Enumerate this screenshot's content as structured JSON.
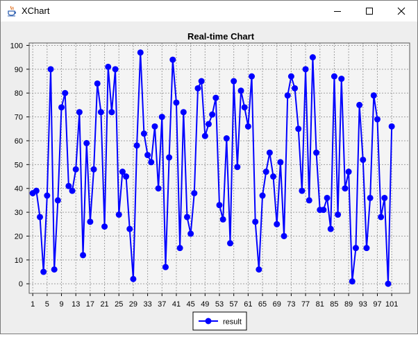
{
  "window": {
    "title": "XChart",
    "icon": "java-cup-icon"
  },
  "controls": {
    "minimize": "minimize-icon",
    "maximize": "maximize-icon",
    "close": "close-icon"
  },
  "colors": {
    "series": "#0000ff",
    "plot_bg": "#f4f4f4",
    "grid": "#a0a0a0",
    "window_bg": "#eeeeee"
  },
  "chart_data": {
    "type": "line",
    "title": "Real-time Chart",
    "xlabel": "",
    "ylabel": "",
    "xlim": [
      0,
      106
    ],
    "ylim": [
      -4,
      101
    ],
    "x_ticks": [
      1,
      5,
      9,
      13,
      17,
      21,
      25,
      29,
      33,
      37,
      41,
      45,
      49,
      53,
      57,
      61,
      65,
      69,
      73,
      77,
      81,
      85,
      89,
      93,
      97,
      101
    ],
    "y_ticks": [
      0,
      10,
      20,
      30,
      40,
      50,
      60,
      70,
      80,
      90,
      100
    ],
    "grid": true,
    "legend": "bottom-center",
    "series": [
      {
        "name": "result",
        "marker": "circle",
        "x": [
          1,
          2,
          3,
          4,
          5,
          6,
          7,
          8,
          9,
          10,
          11,
          12,
          13,
          14,
          15,
          16,
          17,
          18,
          19,
          20,
          21,
          22,
          23,
          24,
          25,
          26,
          27,
          28,
          29,
          30,
          31,
          32,
          33,
          34,
          35,
          36,
          37,
          38,
          39,
          40,
          41,
          42,
          43,
          44,
          45,
          46,
          47,
          48,
          49,
          50,
          51,
          52,
          53,
          54,
          55,
          56,
          57,
          58,
          59,
          60,
          61,
          62,
          63,
          64,
          65,
          66,
          67,
          68,
          69,
          70,
          71,
          72,
          73,
          74,
          75,
          76,
          77,
          78,
          79,
          80,
          81,
          82,
          83,
          84,
          85,
          86,
          87,
          88,
          89,
          90,
          91,
          92,
          93,
          94,
          95,
          96,
          97,
          98,
          99,
          100,
          101
        ],
        "values": [
          38,
          39,
          28,
          5,
          37,
          90,
          6,
          35,
          74,
          80,
          41,
          39,
          48,
          72,
          12,
          59,
          26,
          48,
          84,
          72,
          24,
          91,
          72,
          90,
          29,
          47,
          45,
          23,
          2,
          58,
          97,
          63,
          54,
          51,
          66,
          40,
          70,
          7,
          53,
          94,
          76,
          15,
          72,
          28,
          21,
          38,
          82,
          85,
          62,
          67,
          71,
          78,
          33,
          27,
          61,
          17,
          85,
          49,
          81,
          74,
          66,
          87,
          26,
          6,
          37,
          47,
          55,
          45,
          25,
          51,
          20,
          79,
          87,
          82,
          65,
          39,
          90,
          35,
          95,
          55,
          31,
          31,
          36,
          23,
          87,
          29,
          86,
          40,
          47,
          1,
          15,
          75,
          52,
          15,
          36,
          79,
          69,
          28,
          36,
          0,
          66
        ]
      }
    ]
  }
}
